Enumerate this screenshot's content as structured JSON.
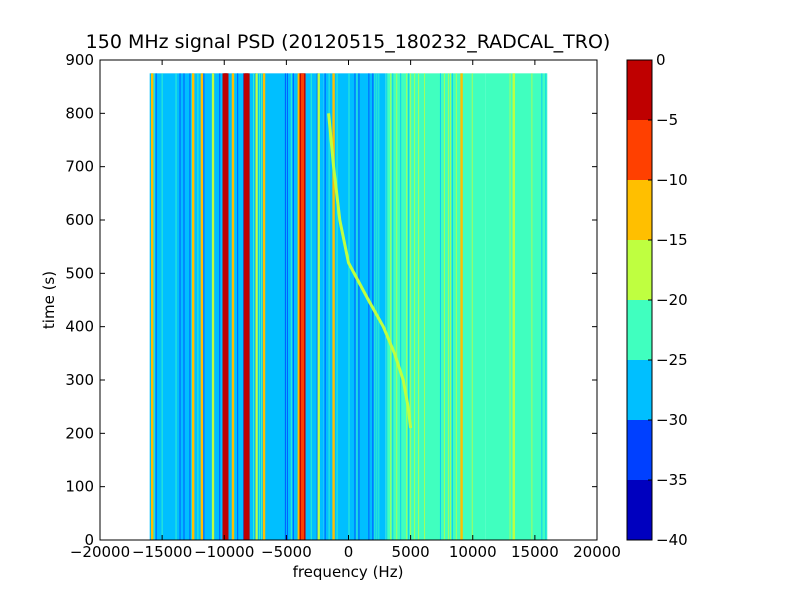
{
  "chart_data": {
    "type": "heatmap",
    "title": "150 MHz signal PSD (20120515_180232_RADCAL_TRO)",
    "xlabel": "frequency (Hz)",
    "ylabel": "time (s)",
    "xlim": [
      -20000,
      20000
    ],
    "ylim": [
      0,
      900
    ],
    "xticks": [
      -20000,
      -15000,
      -10000,
      -5000,
      0,
      5000,
      10000,
      15000,
      20000
    ],
    "yticks": [
      0,
      100,
      200,
      300,
      400,
      500,
      600,
      700,
      800,
      900
    ],
    "data_extent": {
      "freq": [
        -16000,
        16000
      ],
      "time": [
        0,
        875
      ]
    },
    "colorbar": {
      "levels": [
        -40,
        -35,
        -30,
        -25,
        -20,
        -15,
        -10,
        -5,
        0
      ],
      "ticks": [
        0,
        -5,
        -10,
        -15,
        -20,
        -25,
        -30,
        -35,
        -40
      ],
      "colors": [
        "#0000bf",
        "#0040ff",
        "#00bfff",
        "#40ffbf",
        "#bfff40",
        "#ffbf00",
        "#ff4000",
        "#bf0000"
      ]
    },
    "background_psd_db": [
      {
        "freq": [
          -16000,
          -2000
        ],
        "level": -28
      },
      {
        "freq": [
          -2000,
          3000
        ],
        "level": -29
      },
      {
        "freq": [
          3000,
          11000
        ],
        "level": -23
      },
      {
        "freq": [
          11000,
          16000
        ],
        "level": -25
      }
    ],
    "spectral_lines": [
      {
        "freq": -15800,
        "level": -15
      },
      {
        "freq": -12500,
        "level": -12
      },
      {
        "freq": -11800,
        "level": -14
      },
      {
        "freq": -10900,
        "level": -16
      },
      {
        "freq": -9900,
        "level": -3
      },
      {
        "freq": -9300,
        "level": -14
      },
      {
        "freq": -8200,
        "level": -4
      },
      {
        "freq": -7400,
        "level": -16
      },
      {
        "freq": -6800,
        "level": -13
      },
      {
        "freq": -4000,
        "level": -12
      },
      {
        "freq": -3700,
        "level": -8
      },
      {
        "freq": -2400,
        "level": -16
      },
      {
        "freq": -1200,
        "level": -12
      },
      {
        "freq": 9100,
        "level": -15
      },
      {
        "freq": 13300,
        "level": -20
      }
    ],
    "chirp_track": {
      "level": -16,
      "points": [
        {
          "time": 800,
          "freq": -1600
        },
        {
          "time": 700,
          "freq": -1200
        },
        {
          "time": 600,
          "freq": -700
        },
        {
          "time": 520,
          "freq": 0
        },
        {
          "time": 450,
          "freq": 1600
        },
        {
          "time": 400,
          "freq": 2800
        },
        {
          "time": 350,
          "freq": 3700
        },
        {
          "time": 300,
          "freq": 4400
        },
        {
          "time": 250,
          "freq": 4800
        },
        {
          "time": 210,
          "freq": 5000
        }
      ]
    }
  }
}
